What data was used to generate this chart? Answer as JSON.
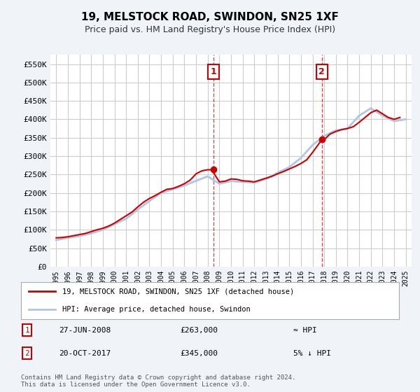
{
  "title": "19, MELSTOCK ROAD, SWINDON, SN25 1XF",
  "subtitle": "Price paid vs. HM Land Registry's House Price Index (HPI)",
  "legend_line1": "19, MELSTOCK ROAD, SWINDON, SN25 1XF (detached house)",
  "legend_line2": "HPI: Average price, detached house, Swindon",
  "sale1_date": 2008.49,
  "sale1_label": "1",
  "sale1_price": 263000,
  "sale1_text": "27-JUN-2008",
  "sale1_price_text": "£263,000",
  "sale1_rel": "≈ HPI",
  "sale2_date": 2017.8,
  "sale2_label": "2",
  "sale2_price": 345000,
  "sale2_text": "20-OCT-2017",
  "sale2_price_text": "£345,000",
  "sale2_rel": "5% ↓ HPI",
  "footer": "Contains HM Land Registry data © Crown copyright and database right 2024.\nThis data is licensed under the Open Government Licence v3.0.",
  "ylim": [
    0,
    575000
  ],
  "yticks": [
    0,
    50000,
    100000,
    150000,
    200000,
    250000,
    300000,
    350000,
    400000,
    450000,
    500000,
    550000
  ],
  "ytick_labels": [
    "£0",
    "£50K",
    "£100K",
    "£150K",
    "£200K",
    "£250K",
    "£300K",
    "£350K",
    "£400K",
    "£450K",
    "£500K",
    "£550K"
  ],
  "xlim_start": 1994.5,
  "xlim_end": 2025.5,
  "hpi_color": "#aec6e8",
  "property_color": "#cc0000",
  "background_color": "#f0f4f8",
  "plot_bg": "#ffffff",
  "grid_color": "#cccccc",
  "hpi_years": [
    1995,
    1996,
    1997,
    1998,
    1999,
    2000,
    2001,
    2002,
    2003,
    2004,
    2005,
    2006,
    2007,
    2008,
    2009,
    2010,
    2011,
    2012,
    2013,
    2014,
    2015,
    2016,
    2017,
    2018,
    2019,
    2020,
    2021,
    2022,
    2023,
    2024,
    2025
  ],
  "hpi_values": [
    72000,
    78000,
    83000,
    90000,
    100000,
    115000,
    130000,
    155000,
    178000,
    200000,
    210000,
    220000,
    233000,
    245000,
    225000,
    232000,
    230000,
    228000,
    238000,
    255000,
    270000,
    295000,
    330000,
    355000,
    370000,
    375000,
    410000,
    430000,
    410000,
    395000,
    400000
  ],
  "prop_years": [
    1995,
    1995.5,
    1996,
    1996.5,
    1997,
    1997.5,
    1998,
    1998.5,
    1999,
    1999.5,
    2000,
    2000.5,
    2001,
    2001.5,
    2002,
    2002.5,
    2003,
    2003.5,
    2004,
    2004.5,
    2005,
    2005.5,
    2006,
    2006.5,
    2007,
    2007.5,
    2008,
    2008.49,
    2008.5,
    2009,
    2009.5,
    2010,
    2010.5,
    2011,
    2011.5,
    2012,
    2012.5,
    2013,
    2013.5,
    2014,
    2014.5,
    2015,
    2015.5,
    2016,
    2016.5,
    2017,
    2017.8,
    2018,
    2018.5,
    2019,
    2019.5,
    2020,
    2020.5,
    2021,
    2021.5,
    2022,
    2022.5,
    2023,
    2023.5,
    2024,
    2024.5
  ],
  "prop_values": [
    78000,
    79000,
    81000,
    84000,
    87000,
    90000,
    95000,
    100000,
    104000,
    110000,
    118000,
    128000,
    138000,
    148000,
    162000,
    175000,
    185000,
    193000,
    202000,
    210000,
    212000,
    218000,
    225000,
    235000,
    252000,
    260000,
    263000,
    263000,
    255000,
    230000,
    232000,
    238000,
    237000,
    233000,
    232000,
    230000,
    235000,
    240000,
    245000,
    252000,
    258000,
    265000,
    272000,
    280000,
    290000,
    310000,
    345000,
    345000,
    360000,
    367000,
    372000,
    375000,
    380000,
    392000,
    405000,
    418000,
    425000,
    415000,
    405000,
    400000,
    405000
  ]
}
